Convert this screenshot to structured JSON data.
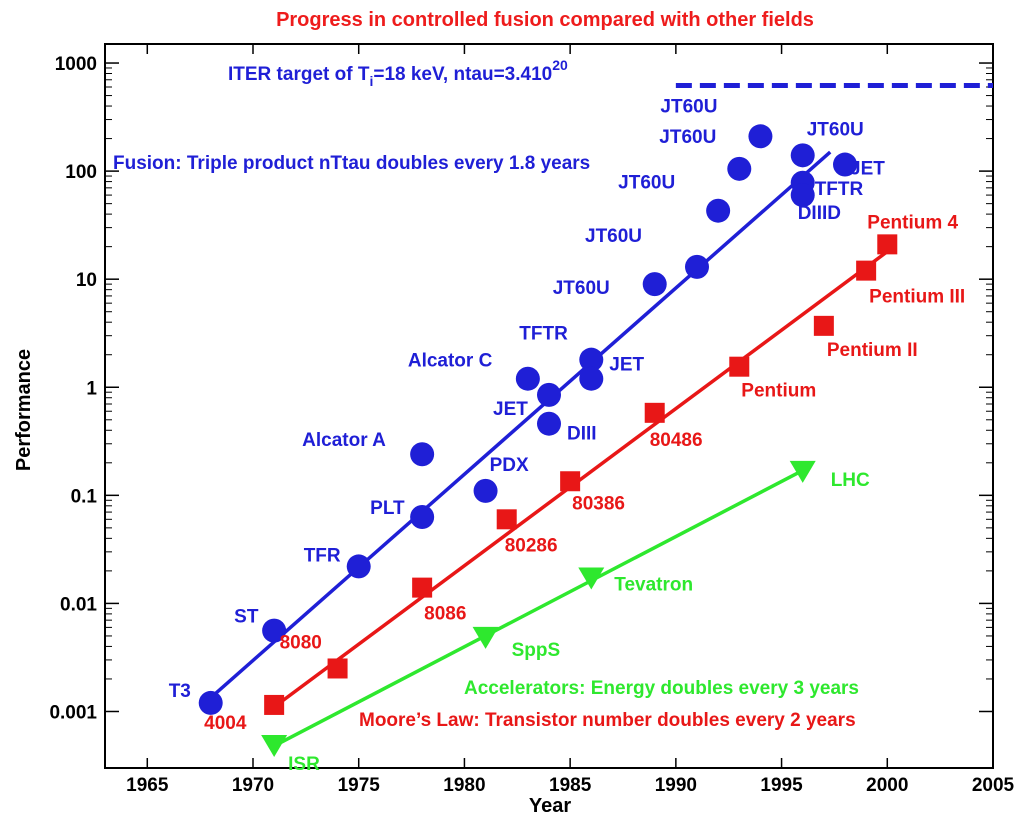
{
  "chart_data": {
    "type": "scatter",
    "title": "Progress in controlled fusion compared with other fields",
    "xlabel": "Year",
    "ylabel": "Performance",
    "xlim": [
      1963,
      2005
    ],
    "ylim": [
      0.0003,
      1500
    ],
    "log_y": true,
    "grid": false,
    "x_ticks": [
      1965,
      1970,
      1975,
      1980,
      1985,
      1990,
      1995,
      2000,
      2005
    ],
    "x_tick_labels": [
      "1965",
      "1970",
      "1975",
      "1980",
      "1985",
      "1990",
      "1995",
      "2000",
      "2005"
    ],
    "y_ticks": [
      0.001,
      0.01,
      0.1,
      1,
      10,
      100,
      1000
    ],
    "y_tick_labels": [
      "0.001",
      "0.01",
      "0.1",
      "1",
      "10",
      "100",
      "1000"
    ],
    "reference_line": {
      "label_main": "ITER target of T",
      "label_sub": "i",
      "label_rest": "=18 keV, ntau=3.410",
      "label_sup": "20",
      "x_range": [
        1990,
        2005
      ],
      "y": 620,
      "color": "#1f1fd6"
    },
    "series": [
      {
        "name": "Fusion",
        "note": "Fusion: Triple product nTtau doubles every 1.8 years",
        "color": "#1f1fd6",
        "marker": "circle",
        "trend": {
          "x": [
            1967.5,
            1997.3
          ],
          "y": [
            0.0011,
            150
          ]
        },
        "points": [
          {
            "label": "T3",
            "x": 1968,
            "y": 0.0012
          },
          {
            "label": "ST",
            "x": 1971,
            "y": 0.0056
          },
          {
            "label": "TFR",
            "x": 1975,
            "y": 0.022
          },
          {
            "label": "PLT",
            "x": 1978,
            "y": 0.063
          },
          {
            "label": "Alcator A",
            "x": 1978,
            "y": 0.24
          },
          {
            "label": "PDX",
            "x": 1981,
            "y": 0.11
          },
          {
            "label": "Alcator C",
            "x": 1983,
            "y": 1.2
          },
          {
            "label": "JET",
            "x": 1984,
            "y": 0.85
          },
          {
            "label": "DIII",
            "x": 1984,
            "y": 0.46
          },
          {
            "label": "TFTR",
            "x": 1986,
            "y": 1.8
          },
          {
            "label": "JET",
            "x": 1986,
            "y": 1.2
          },
          {
            "label": "JT60U",
            "x": 1989,
            "y": 9
          },
          {
            "label": "JT60U",
            "x": 1991,
            "y": 13
          },
          {
            "label": "JT60U",
            "x": 1992,
            "y": 43
          },
          {
            "label": "JT60U",
            "x": 1993,
            "y": 105
          },
          {
            "label": "JT60U",
            "x": 1994,
            "y": 210
          },
          {
            "label": "JT60U",
            "x": 1996,
            "y": 140
          },
          {
            "label": "TFTR",
            "x": 1996,
            "y": 78
          },
          {
            "label": "DIIID",
            "x": 1996,
            "y": 60
          },
          {
            "label": "JET",
            "x": 1998,
            "y": 115
          }
        ]
      },
      {
        "name": "Moore's Law",
        "note": "Moore’s Law: Transistor number doubles every 2 years",
        "color": "#e81717",
        "marker": "square",
        "trend": {
          "x": [
            1971,
            2000
          ],
          "y": [
            0.0011,
            18
          ]
        },
        "points": [
          {
            "label": "4004",
            "x": 1971,
            "y": 0.00115
          },
          {
            "label": "8080",
            "x": 1974,
            "y": 0.0025
          },
          {
            "label": "8086",
            "x": 1978,
            "y": 0.014
          },
          {
            "label": "80286",
            "x": 1982,
            "y": 0.06
          },
          {
            "label": "80386",
            "x": 1985,
            "y": 0.135
          },
          {
            "label": "80486",
            "x": 1989,
            "y": 0.58
          },
          {
            "label": "Pentium",
            "x": 1993,
            "y": 1.55
          },
          {
            "label": "Pentium II",
            "x": 1997,
            "y": 3.7
          },
          {
            "label": "Pentium III",
            "x": 1999,
            "y": 12
          },
          {
            "label": "Pentium 4",
            "x": 2000,
            "y": 21
          }
        ]
      },
      {
        "name": "Accelerators",
        "note": "Accelerators: Energy doubles every 3 years",
        "color": "#2ee82e",
        "marker": "triangle-down",
        "trend": {
          "x": [
            1971,
            1996
          ],
          "y": [
            0.00048,
            0.17
          ]
        },
        "points": [
          {
            "label": "ISR",
            "x": 1971,
            "y": 0.00048
          },
          {
            "label": "SppS",
            "x": 1981,
            "y": 0.0048
          },
          {
            "label": "Tevatron",
            "x": 1986,
            "y": 0.017
          },
          {
            "label": "LHC",
            "x": 1996,
            "y": 0.165
          }
        ]
      }
    ]
  }
}
